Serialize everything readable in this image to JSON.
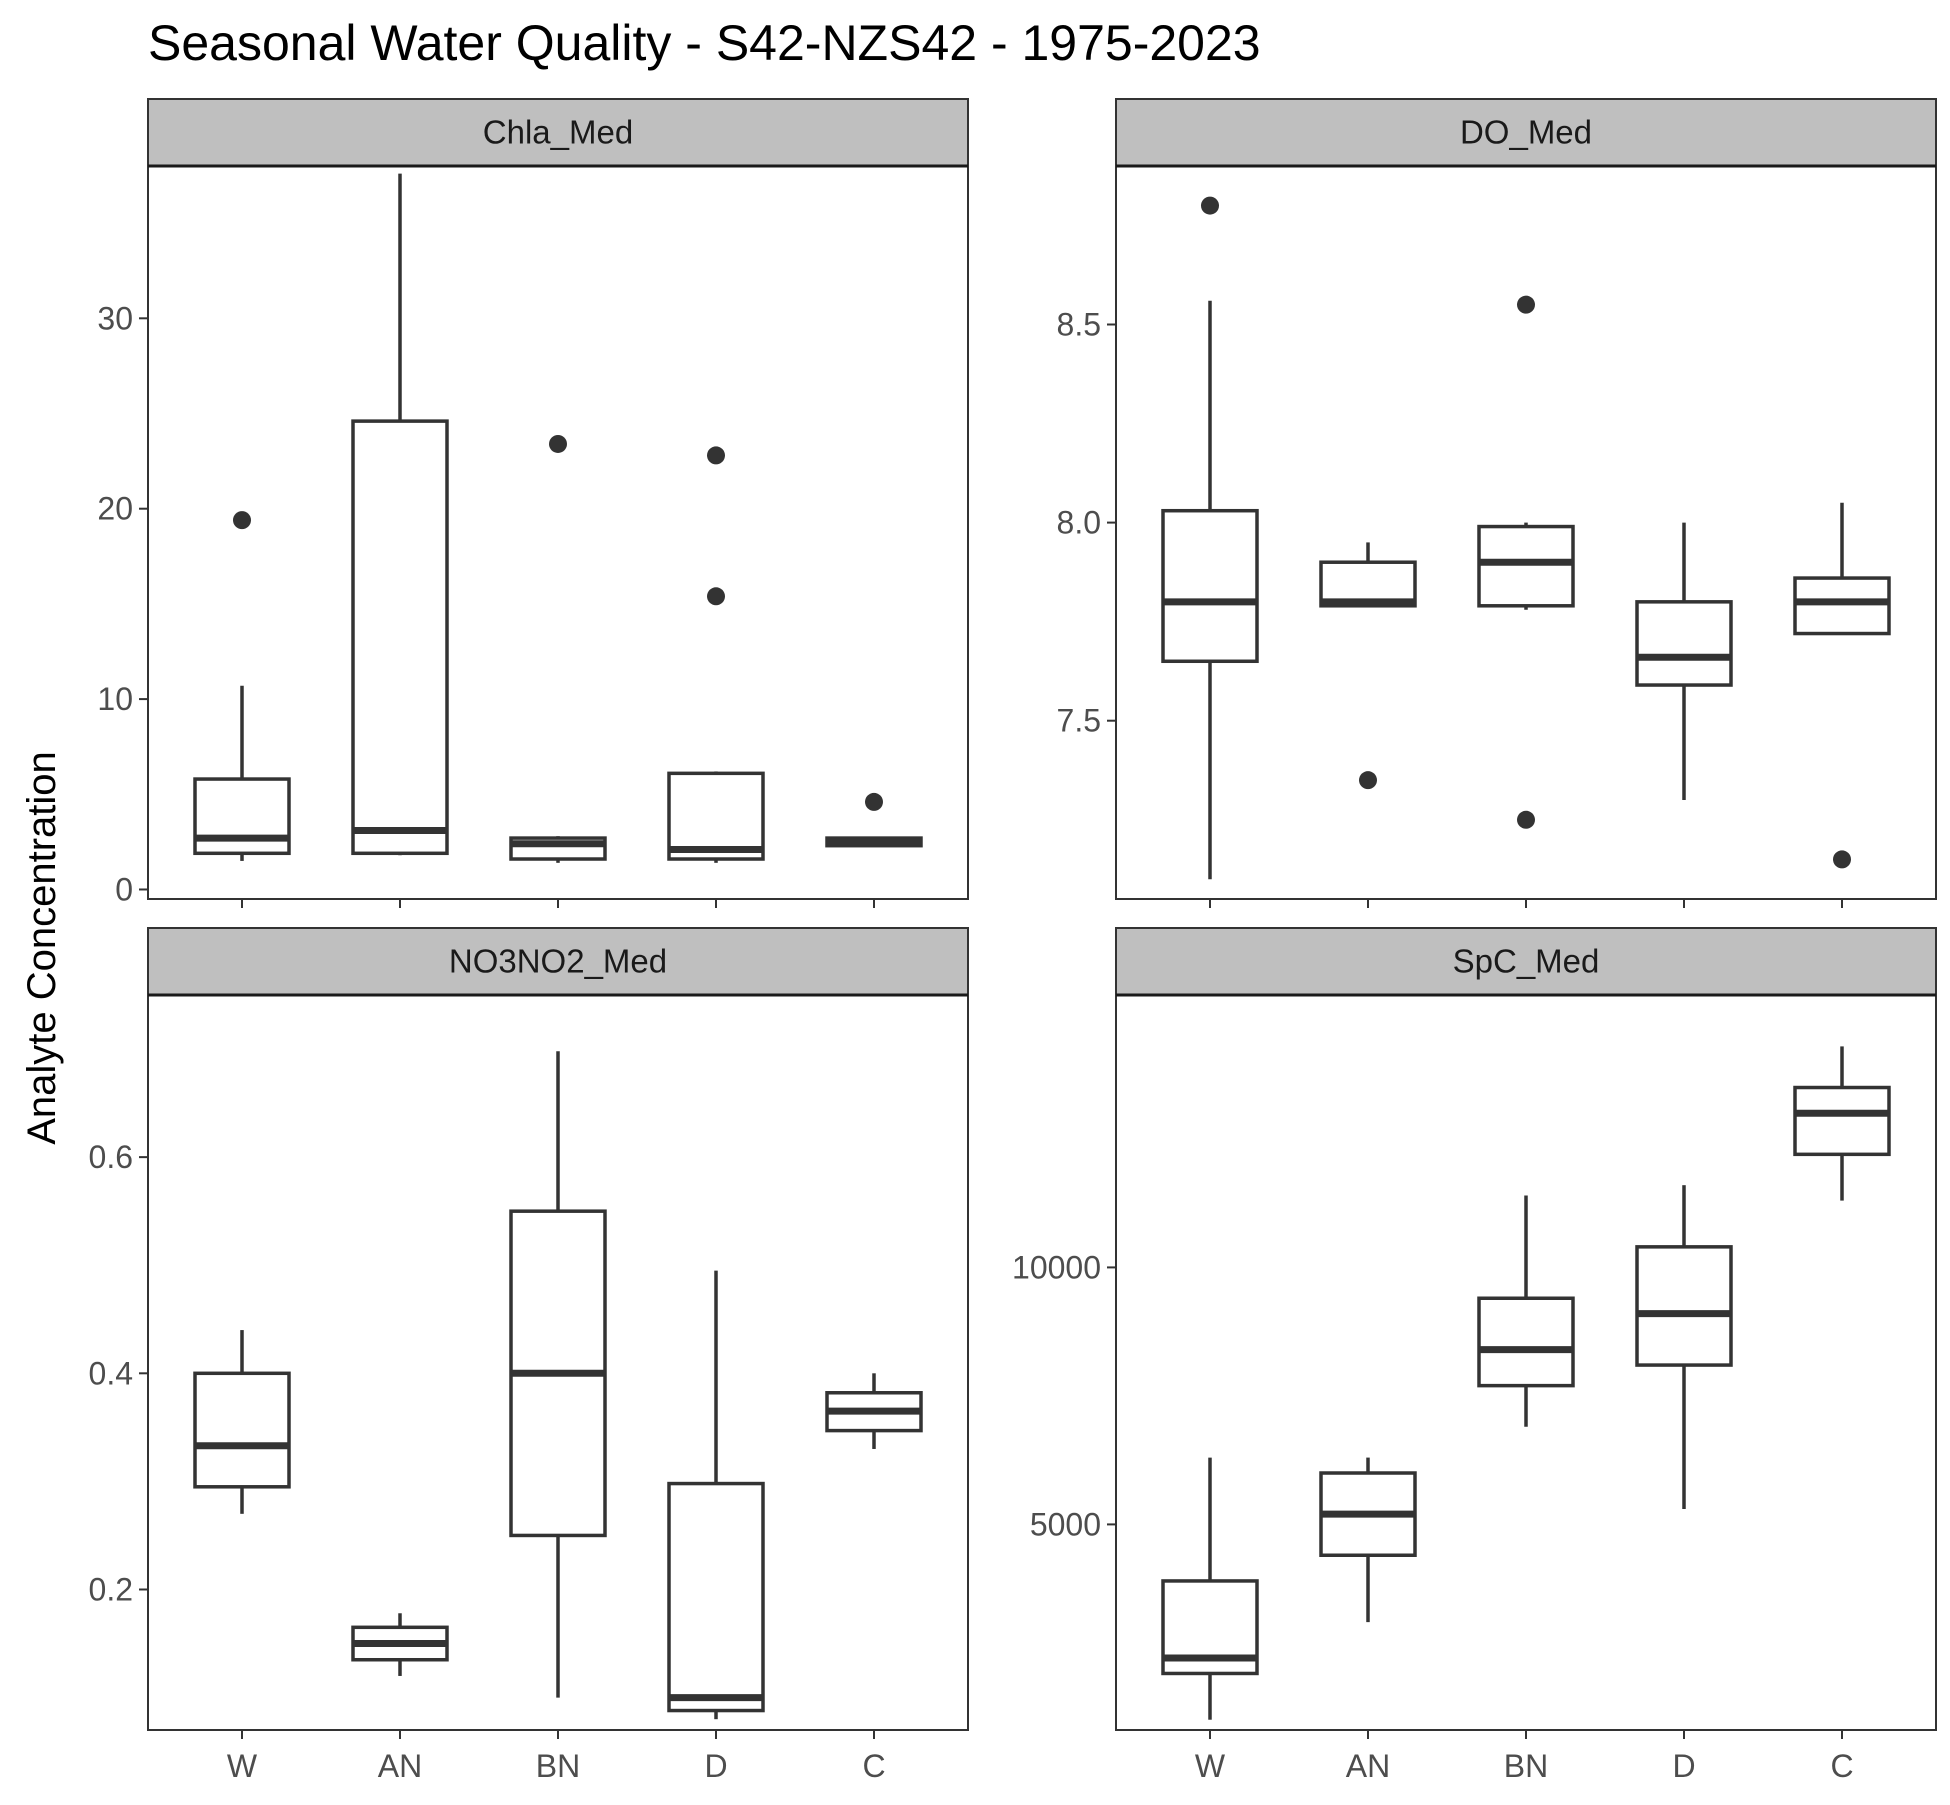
{
  "chart_data": {
    "type": "boxplot",
    "title": "Seasonal Water Quality - S42-NZS42 - 1975-2023",
    "ylabel": "Analyte Concentration",
    "xlabel": "",
    "categories": [
      "W",
      "AN",
      "BN",
      "D",
      "C"
    ],
    "grid": false,
    "colors": {
      "stroke": "#333333",
      "strip_fill": "#bfbfbf",
      "frame": "#333333",
      "text": "#4d4d4d"
    },
    "panels": [
      {
        "name": "Chla_Med",
        "ylim": [
          -0.5,
          38
        ],
        "yticks": [
          0,
          10,
          20,
          30
        ],
        "ytick_labels": [
          "0",
          "10",
          "20",
          "30"
        ],
        "boxes": [
          {
            "category": "W",
            "min": 1.5,
            "q1": 1.9,
            "median": 2.7,
            "q3": 5.8,
            "max": 10.7,
            "outliers": [
              19.4
            ]
          },
          {
            "category": "AN",
            "min": 1.8,
            "q1": 1.9,
            "median": 3.1,
            "q3": 24.6,
            "max": 37.6,
            "outliers": []
          },
          {
            "category": "BN",
            "min": 1.4,
            "q1": 1.6,
            "median": 2.4,
            "q3": 2.7,
            "max": 2.8,
            "outliers": [
              23.4
            ]
          },
          {
            "category": "D",
            "min": 1.4,
            "q1": 1.6,
            "median": 2.1,
            "q3": 6.1,
            "max": 6.2,
            "outliers": [
              22.8,
              15.4
            ]
          },
          {
            "category": "C",
            "min": 2.3,
            "q1": 2.3,
            "median": 2.5,
            "q3": 2.7,
            "max": 2.7,
            "outliers": [
              4.6
            ]
          }
        ]
      },
      {
        "name": "DO_Med",
        "ylim": [
          7.05,
          8.9
        ],
        "yticks": [
          7.5,
          8.0,
          8.5
        ],
        "ytick_labels": [
          "7.5",
          "8.0",
          "8.5"
        ],
        "boxes": [
          {
            "category": "W",
            "min": 7.1,
            "q1": 7.65,
            "median": 7.8,
            "q3": 8.03,
            "max": 8.56,
            "outliers": [
              8.8
            ]
          },
          {
            "category": "AN",
            "min": 7.79,
            "q1": 7.79,
            "median": 7.8,
            "q3": 7.9,
            "max": 7.95,
            "outliers": [
              7.35
            ]
          },
          {
            "category": "BN",
            "min": 7.78,
            "q1": 7.79,
            "median": 7.9,
            "q3": 7.99,
            "max": 8.0,
            "outliers": [
              8.55,
              7.25
            ]
          },
          {
            "category": "D",
            "min": 7.3,
            "q1": 7.59,
            "median": 7.66,
            "q3": 7.8,
            "max": 8.0,
            "outliers": []
          },
          {
            "category": "C",
            "min": 7.72,
            "q1": 7.72,
            "median": 7.8,
            "q3": 7.86,
            "max": 8.05,
            "outliers": [
              7.15
            ]
          }
        ]
      },
      {
        "name": "NO3NO2_Med",
        "ylim": [
          0.07,
          0.75
        ],
        "yticks": [
          0.2,
          0.4,
          0.6
        ],
        "ytick_labels": [
          "0.2",
          "0.4",
          "0.6"
        ],
        "boxes": [
          {
            "category": "W",
            "min": 0.27,
            "q1": 0.295,
            "median": 0.333,
            "q3": 0.4,
            "max": 0.44,
            "outliers": []
          },
          {
            "category": "AN",
            "min": 0.12,
            "q1": 0.135,
            "median": 0.15,
            "q3": 0.165,
            "max": 0.178,
            "outliers": []
          },
          {
            "category": "BN",
            "min": 0.1,
            "q1": 0.25,
            "median": 0.4,
            "q3": 0.55,
            "max": 0.698,
            "outliers": []
          },
          {
            "category": "D",
            "min": 0.08,
            "q1": 0.088,
            "median": 0.1,
            "q3": 0.298,
            "max": 0.495,
            "outliers": []
          },
          {
            "category": "C",
            "min": 0.33,
            "q1": 0.347,
            "median": 0.365,
            "q3": 0.382,
            "max": 0.4,
            "outliers": []
          }
        ]
      },
      {
        "name": "SpC_Med",
        "ylim": [
          1000,
          15300
        ],
        "yticks": [
          5000,
          10000
        ],
        "ytick_labels": [
          "5000",
          "10000"
        ],
        "boxes": [
          {
            "category": "W",
            "min": 1200,
            "q1": 2100,
            "median": 2400,
            "q3": 3900,
            "max": 6300,
            "outliers": []
          },
          {
            "category": "AN",
            "min": 3100,
            "q1": 4400,
            "median": 5200,
            "q3": 6000,
            "max": 6300,
            "outliers": []
          },
          {
            "category": "BN",
            "min": 6900,
            "q1": 7700,
            "median": 8400,
            "q3": 9400,
            "max": 11400,
            "outliers": []
          },
          {
            "category": "D",
            "min": 5300,
            "q1": 8100,
            "median": 9100,
            "q3": 10400,
            "max": 11600,
            "outliers": []
          },
          {
            "category": "C",
            "min": 11300,
            "q1": 12200,
            "median": 13000,
            "q3": 13500,
            "max": 14300,
            "outliers": []
          }
        ]
      }
    ]
  }
}
